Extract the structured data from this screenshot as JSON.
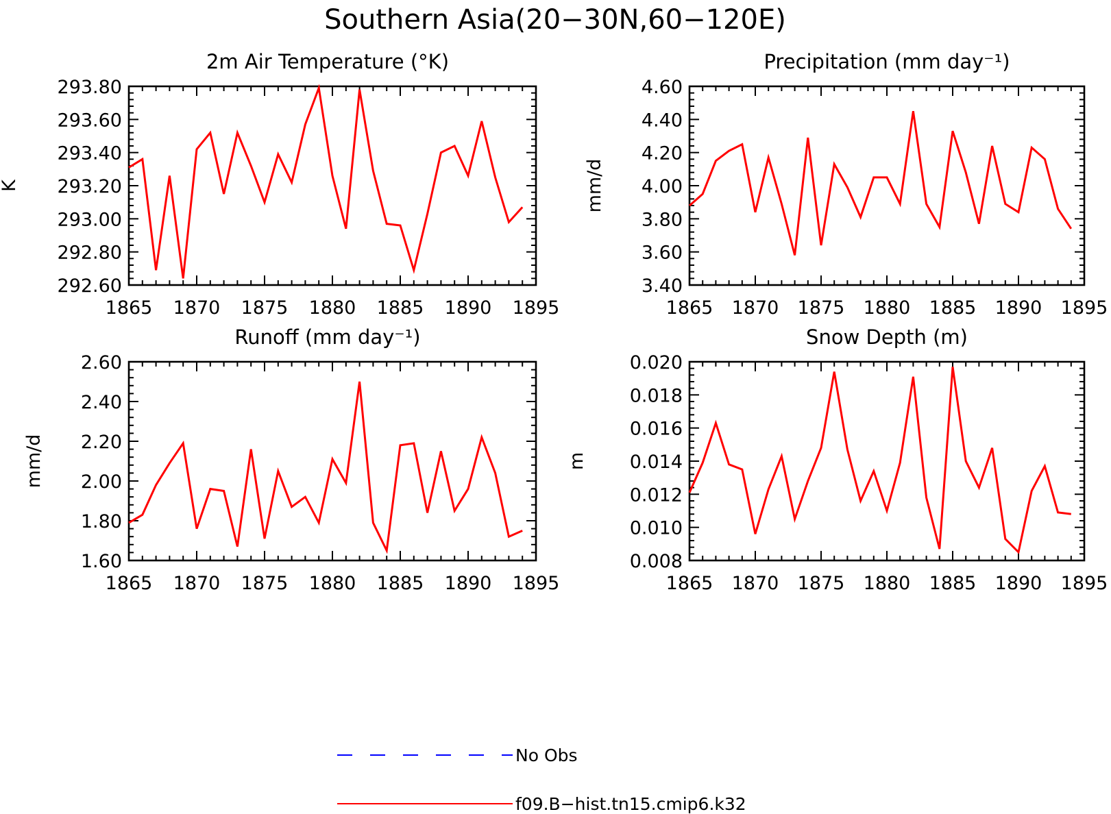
{
  "title": "Southern Asia(20−30N,60−120E)",
  "colors": {
    "model": "#ff0000",
    "obs": "#0000ff"
  },
  "legend": [
    {
      "label": "No Obs",
      "style": "dashed",
      "color": "#0000ff"
    },
    {
      "label": "f09.B−hist.tn15.cmip6.k32",
      "style": "solid",
      "color": "#ff0000"
    }
  ],
  "chart_data": [
    {
      "type": "line",
      "title": "2m Air Temperature (°K)",
      "ylabel": "K",
      "xlim": [
        1865,
        1895
      ],
      "ylim": [
        292.6,
        293.8
      ],
      "xticks": [
        1865,
        1870,
        1875,
        1880,
        1885,
        1890,
        1895
      ],
      "yticks": [
        "292.60",
        "292.80",
        "293.00",
        "293.20",
        "293.40",
        "293.60",
        "293.80"
      ],
      "x": [
        1865,
        1866,
        1867,
        1868,
        1869,
        1870,
        1871,
        1872,
        1873,
        1874,
        1875,
        1876,
        1877,
        1878,
        1879,
        1880,
        1881,
        1882,
        1883,
        1884,
        1885,
        1886,
        1887,
        1888,
        1889,
        1890,
        1891,
        1892,
        1893,
        1894
      ],
      "series": [
        {
          "name": "f09.B−hist.tn15.cmip6.k32",
          "values": [
            293.31,
            293.36,
            292.69,
            293.26,
            292.64,
            293.42,
            293.52,
            293.15,
            293.52,
            293.32,
            293.1,
            293.39,
            293.22,
            293.57,
            293.79,
            293.26,
            292.94,
            293.78,
            293.29,
            292.97,
            292.96,
            292.69,
            293.03,
            293.4,
            293.44,
            293.26,
            293.59,
            293.25,
            292.98,
            293.07
          ]
        }
      ]
    },
    {
      "type": "line",
      "title": "Precipitation (mm day⁻¹)",
      "ylabel": "mm/d",
      "xlim": [
        1865,
        1895
      ],
      "ylim": [
        3.4,
        4.6
      ],
      "xticks": [
        1865,
        1870,
        1875,
        1880,
        1885,
        1890,
        1895
      ],
      "yticks": [
        "3.40",
        "3.60",
        "3.80",
        "4.00",
        "4.20",
        "4.40",
        "4.60"
      ],
      "x": [
        1865,
        1866,
        1867,
        1868,
        1869,
        1870,
        1871,
        1872,
        1873,
        1874,
        1875,
        1876,
        1877,
        1878,
        1879,
        1880,
        1881,
        1882,
        1883,
        1884,
        1885,
        1886,
        1887,
        1888,
        1889,
        1890,
        1891,
        1892,
        1893,
        1894
      ],
      "series": [
        {
          "name": "f09.B−hist.tn15.cmip6.k32",
          "values": [
            3.88,
            3.95,
            4.15,
            4.21,
            4.25,
            3.84,
            4.17,
            3.89,
            3.58,
            4.29,
            3.64,
            4.13,
            3.99,
            3.81,
            4.05,
            4.05,
            3.89,
            4.45,
            3.89,
            3.75,
            4.33,
            4.08,
            3.77,
            4.24,
            3.89,
            3.84,
            4.23,
            4.16,
            3.86,
            3.74
          ]
        }
      ]
    },
    {
      "type": "line",
      "title": "Runoff (mm day⁻¹)",
      "ylabel": "mm/d",
      "xlim": [
        1865,
        1895
      ],
      "ylim": [
        1.6,
        2.6
      ],
      "xticks": [
        1865,
        1870,
        1875,
        1880,
        1885,
        1890,
        1895
      ],
      "yticks": [
        "1.60",
        "1.80",
        "2.00",
        "2.20",
        "2.40",
        "2.60"
      ],
      "x": [
        1865,
        1866,
        1867,
        1868,
        1869,
        1870,
        1871,
        1872,
        1873,
        1874,
        1875,
        1876,
        1877,
        1878,
        1879,
        1880,
        1881,
        1882,
        1883,
        1884,
        1885,
        1886,
        1887,
        1888,
        1889,
        1890,
        1891,
        1892,
        1893,
        1894
      ],
      "series": [
        {
          "name": "f09.B−hist.tn15.cmip6.k32",
          "values": [
            1.79,
            1.83,
            1.98,
            2.09,
            2.19,
            1.76,
            1.96,
            1.95,
            1.67,
            2.16,
            1.71,
            2.05,
            1.87,
            1.92,
            1.79,
            2.11,
            1.99,
            2.5,
            1.79,
            1.65,
            2.18,
            2.19,
            1.84,
            2.15,
            1.85,
            1.96,
            2.22,
            2.04,
            1.72,
            1.75
          ]
        }
      ]
    },
    {
      "type": "line",
      "title": "Snow Depth (m)",
      "ylabel": "m",
      "xlim": [
        1865,
        1895
      ],
      "ylim": [
        0.008,
        0.02
      ],
      "xticks": [
        1865,
        1870,
        1875,
        1880,
        1885,
        1890,
        1895
      ],
      "yticks": [
        "0.008",
        "0.010",
        "0.012",
        "0.014",
        "0.016",
        "0.018",
        "0.020"
      ],
      "x": [
        1865,
        1866,
        1867,
        1868,
        1869,
        1870,
        1871,
        1872,
        1873,
        1874,
        1875,
        1876,
        1877,
        1878,
        1879,
        1880,
        1881,
        1882,
        1883,
        1884,
        1885,
        1886,
        1887,
        1888,
        1889,
        1890,
        1891,
        1892,
        1893,
        1894
      ],
      "series": [
        {
          "name": "f09.B−hist.tn15.cmip6.k32",
          "values": [
            0.0121,
            0.0139,
            0.0163,
            0.0138,
            0.0135,
            0.0096,
            0.0123,
            0.0143,
            0.0105,
            0.0128,
            0.0148,
            0.0194,
            0.0147,
            0.0116,
            0.0134,
            0.011,
            0.0139,
            0.0191,
            0.0118,
            0.0087,
            0.0197,
            0.014,
            0.0124,
            0.0148,
            0.0093,
            0.0085,
            0.0122,
            0.0137,
            0.0109,
            0.0108
          ]
        }
      ]
    }
  ]
}
